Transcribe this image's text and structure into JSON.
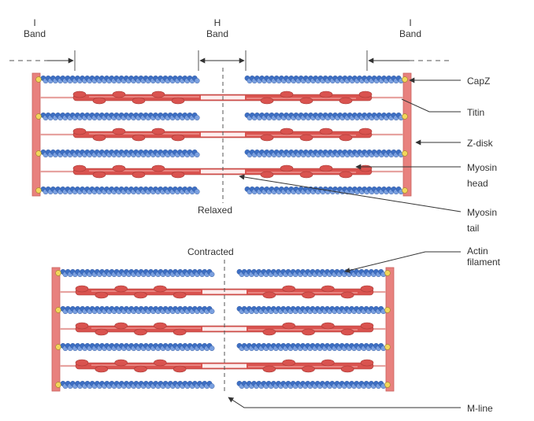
{
  "bands": {
    "i_left": {
      "line1": "I",
      "line2": "Band"
    },
    "h": {
      "line1": "H",
      "line2": "Band"
    },
    "i_right": {
      "line1": "I",
      "line2": "Band"
    }
  },
  "states": {
    "relaxed": "Relaxed",
    "contracted": "Contracted"
  },
  "callouts": {
    "capz": "CapZ",
    "titin": "Titin",
    "zdisk": "Z-disk",
    "myosin_head": {
      "line1": "Myosin",
      "line2": "head"
    },
    "myosin_tail": {
      "line1": "Myosin",
      "line2": "tail"
    },
    "actin": {
      "line1": "Actin",
      "line2": "filament"
    },
    "mline": "M-line"
  },
  "colors": {
    "zdisk": "#e8817e",
    "zdisk_stroke": "#c9605c",
    "actin_bead": "#3d6fc4",
    "actin_bead_light": "#7aa0e0",
    "myosin": "#d9534f",
    "myosin_light": "#f2a09c",
    "capz": "#f2d65c",
    "arrow": "#333333"
  }
}
